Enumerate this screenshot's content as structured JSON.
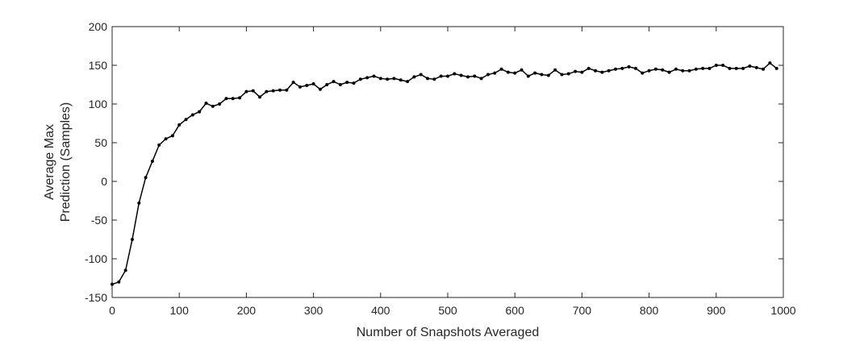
{
  "chart_data": {
    "type": "line",
    "title": "",
    "xlabel": "Number of Snapshots Averaged",
    "ylabel": [
      "Average Max",
      "Prediction (Samples)"
    ],
    "xlim": [
      0,
      1000
    ],
    "ylim": [
      -150,
      200
    ],
    "xticks": [
      0,
      100,
      200,
      300,
      400,
      500,
      600,
      700,
      800,
      900,
      1000
    ],
    "yticks": [
      -150,
      -100,
      -50,
      0,
      50,
      100,
      150,
      200
    ],
    "grid": false,
    "legend": "none",
    "color": "#000000",
    "marker": "dot",
    "x": [
      0,
      10,
      20,
      30,
      40,
      50,
      60,
      70,
      80,
      90,
      100,
      110,
      120,
      130,
      140,
      150,
      160,
      170,
      180,
      190,
      200,
      210,
      220,
      230,
      240,
      250,
      260,
      270,
      280,
      290,
      300,
      310,
      320,
      330,
      340,
      350,
      360,
      370,
      380,
      390,
      400,
      410,
      420,
      430,
      440,
      450,
      460,
      470,
      480,
      490,
      500,
      510,
      520,
      530,
      540,
      550,
      560,
      570,
      580,
      590,
      600,
      610,
      620,
      630,
      640,
      650,
      660,
      670,
      680,
      690,
      700,
      710,
      720,
      730,
      740,
      750,
      760,
      770,
      780,
      790,
      800,
      810,
      820,
      830,
      840,
      850,
      860,
      870,
      880,
      890,
      900,
      910,
      920,
      930,
      940,
      950,
      960,
      970,
      980,
      990
    ],
    "y": [
      -133,
      -130,
      -115,
      -75,
      -28,
      5,
      26,
      47,
      55,
      59,
      73,
      80,
      86,
      90,
      101,
      97,
      100,
      107,
      107,
      108,
      116,
      117,
      109,
      116,
      117,
      118,
      118,
      128,
      122,
      124,
      126,
      119,
      125,
      129,
      125,
      128,
      127,
      132,
      134,
      136,
      133,
      132,
      133,
      131,
      129,
      135,
      138,
      133,
      132,
      136,
      136,
      139,
      137,
      135,
      136,
      133,
      138,
      140,
      145,
      141,
      140,
      144,
      136,
      140,
      138,
      137,
      144,
      138,
      139,
      142,
      141,
      146,
      143,
      141,
      143,
      145,
      146,
      148,
      146,
      140,
      143,
      145,
      144,
      141,
      145,
      143,
      143,
      145,
      146,
      146,
      150,
      150,
      146,
      146,
      146,
      149,
      147,
      145,
      153,
      146
    ]
  }
}
